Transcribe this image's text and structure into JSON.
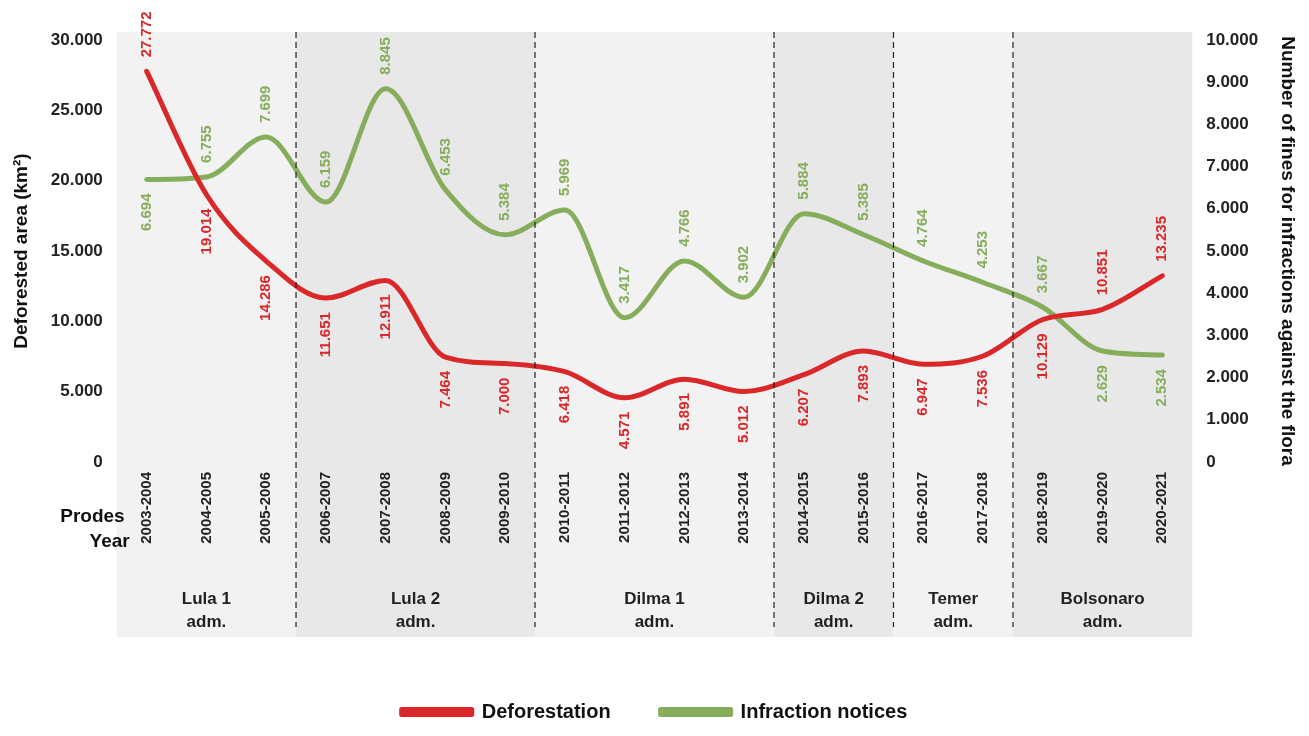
{
  "chart_data": {
    "type": "line",
    "xlabel": "Prodes Year",
    "ylabel": "Deforested area (km²)",
    "y2label": "Number of fines for infractions against the flora",
    "categories": [
      "2003-2004",
      "2004-2005",
      "2005-2006",
      "2006-2007",
      "2007-2008",
      "2008-2009",
      "2009-2010",
      "2010-2011",
      "2011-2012",
      "2012-2013",
      "2013-2014",
      "2014-2015",
      "2015-2016",
      "2016-2017",
      "2017-2018",
      "2018-2019",
      "2019-2020",
      "2020-2021"
    ],
    "series": [
      {
        "name": "Deforestation",
        "color": "#d9272a",
        "values": [
          27772,
          19014,
          14286,
          11651,
          12911,
          7464,
          7000,
          6418,
          4571,
          5891,
          5012,
          6207,
          7893,
          6947,
          7536,
          10129,
          10851,
          13235
        ],
        "value_labels": [
          "27.772",
          "19.014",
          "14.286",
          "11.651",
          "12.911",
          "7.464",
          "7.000",
          "6.418",
          "4.571",
          "5.891",
          "5.012",
          "6.207",
          "7.893",
          "6.947",
          "7.536",
          "10.129",
          "10.851",
          "13.235"
        ]
      },
      {
        "name": "Infraction notices",
        "color": "#86ad5b",
        "axis": "y2",
        "values": [
          6694,
          6755,
          7699,
          6159,
          8845,
          6453,
          5384,
          5969,
          3417,
          4766,
          3902,
          5884,
          5385,
          4764,
          4253,
          3667,
          2629,
          2534
        ],
        "value_labels": [
          "6.694",
          "6.755",
          "7.699",
          "6.159",
          "8.845",
          "6.453",
          "5.384",
          "5.969",
          "3.417",
          "4.766",
          "3.902",
          "5.884",
          "5.385",
          "4.764",
          "4.253",
          "3.667",
          "2.629",
          "2.534"
        ]
      }
    ],
    "ylim": [
      0,
      30000
    ],
    "yticks": [
      0,
      {
        "value": 5000,
        "label": "5.000"
      },
      {
        "value": 10000,
        "label": "10.000"
      },
      {
        "value": 15000,
        "label": "15.000"
      },
      {
        "value": 20000,
        "label": "20.000"
      },
      {
        "value": 25000,
        "label": "25.000"
      },
      {
        "value": 30000,
        "label": "30.000"
      }
    ],
    "y2lim": [
      0,
      10000
    ],
    "y2ticks": [
      0,
      {
        "value": 1000,
        "label": "1.000"
      },
      {
        "value": 2000,
        "label": "2.000"
      },
      {
        "value": 3000,
        "label": "3.000"
      },
      {
        "value": 4000,
        "label": "4.000"
      },
      {
        "value": 5000,
        "label": "5.000"
      },
      {
        "value": 6000,
        "label": "6.000"
      },
      {
        "value": 7000,
        "label": "7.000"
      },
      {
        "value": 8000,
        "label": "8.000"
      },
      {
        "value": 9000,
        "label": "9.000"
      },
      {
        "value": 10000,
        "label": "10.000"
      }
    ],
    "bands": [
      {
        "axis": "x",
        "from": "2003-2004",
        "to": "2005-2006",
        "label": "Lula 1 adm.",
        "color": "#f2f2f2"
      },
      {
        "axis": "x",
        "from": "2006-2007",
        "to": "2009-2010",
        "label": "Lula 2 adm.",
        "color": "#e8e8e8"
      },
      {
        "axis": "x",
        "from": "2010-2011",
        "to": "2013-2014",
        "label": "Dilma 1 adm.",
        "color": "#f2f2f2"
      },
      {
        "axis": "x",
        "from": "2014-2015",
        "to": "2015-2016",
        "label": "Dilma 2 adm.",
        "color": "#e8e8e8"
      },
      {
        "axis": "x",
        "from": "2016-2017",
        "to": "2017-2018",
        "label": "Temer adm.",
        "color": "#f2f2f2"
      },
      {
        "axis": "x",
        "from": "2018-2019",
        "to": "2020-2021",
        "label": "Bolsonaro adm.",
        "color": "#e8e8e8"
      }
    ],
    "grid": false,
    "legend": "bottom",
    "marker": "none",
    "line_style": "solid"
  }
}
